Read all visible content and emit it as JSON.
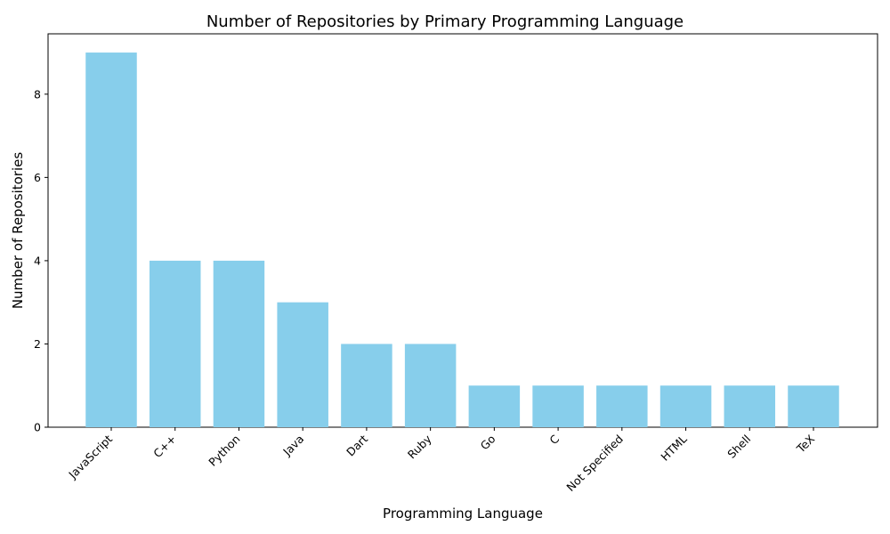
{
  "chart_data": {
    "type": "bar",
    "title": "Number of Repositories by Primary Programming Language",
    "xlabel": "Programming Language",
    "ylabel": "Number of Repositories",
    "categories": [
      "JavaScript",
      "C++",
      "Python",
      "Java",
      "Dart",
      "Ruby",
      "Go",
      "C",
      "Not Specified",
      "HTML",
      "Shell",
      "TeX"
    ],
    "values": [
      9,
      4,
      4,
      3,
      2,
      2,
      1,
      1,
      1,
      1,
      1,
      1
    ],
    "yticks": [
      0,
      2,
      4,
      6,
      8
    ],
    "ylim": [
      0,
      9.45
    ],
    "grid": false,
    "legend": "none",
    "bar_color": "#87CEEB",
    "x_tick_rotation": "45 degrees"
  }
}
